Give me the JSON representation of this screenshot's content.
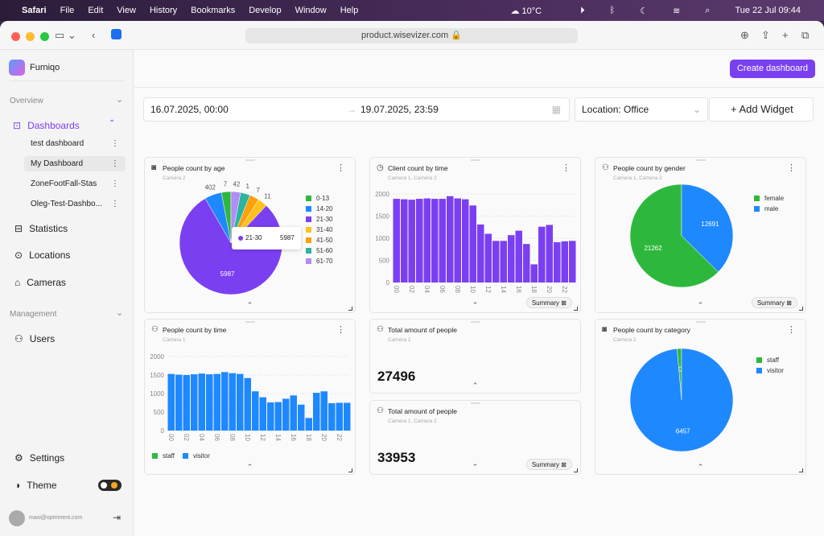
{
  "menubar": {
    "app": "Safari",
    "items": [
      "File",
      "Edit",
      "View",
      "History",
      "Bookmarks",
      "Develop",
      "Window",
      "Help"
    ],
    "weather": "10°C",
    "datetime": "Tue 22 Jul  09:44"
  },
  "browser": {
    "url": "product.wisevizer.com"
  },
  "sidebar": {
    "brand": "Furniqo",
    "overview": "Overview",
    "dashboards": "Dashboards",
    "dashboard_items": [
      "test dashboard",
      "My Dashboard",
      "ZoneFootFall-Stas",
      "Oleg-Test-Dashbo..."
    ],
    "statistics": "Statistics",
    "locations": "Locations",
    "cameras": "Cameras",
    "management": "Management",
    "users": "Users",
    "settings": "Settings",
    "theme": "Theme",
    "email": "maxi@optriment.com"
  },
  "header": {
    "create_label": "Create dashboard"
  },
  "filters": {
    "start": "16.07.2025, 00:00",
    "end": "19.07.2025, 23:59",
    "location": "Location: Office",
    "add_widget": "Add Widget"
  },
  "common": {
    "summary": "Summary"
  },
  "widgets": {
    "age": {
      "title": "People count by age",
      "sub": "Camera 2",
      "tooltip_label": "21-30",
      "tooltip_value": "5987"
    },
    "client": {
      "title": "Client count by time",
      "sub": "Camera 1, Camera 2"
    },
    "gender": {
      "title": "People count by gender",
      "sub": "Camera 1, Camera 2"
    },
    "ptime": {
      "title": "People count by time",
      "sub": "Camera 1"
    },
    "total1": {
      "title": "Total amount of people",
      "sub": "Camera 1",
      "value": "27496"
    },
    "total2": {
      "title": "Total amount of people",
      "sub": "Camera 1, Camera 2",
      "value": "33953"
    },
    "category": {
      "title": "People count by category",
      "sub": "Camera 2"
    }
  },
  "chart_data": [
    {
      "id": "age",
      "type": "pie",
      "labels": [
        "0-13",
        "14-20",
        "21-30",
        "31-40",
        "41-50",
        "51-60",
        "61-70"
      ],
      "values": [
        7,
        402,
        5987,
        11,
        7,
        1,
        42
      ],
      "colors": [
        "#2db83d",
        "#1e88ff",
        "#7b3ff2",
        "#ffc21a",
        "#ff9f0a",
        "#2bb5a0",
        "#b38cf5"
      ]
    },
    {
      "id": "client",
      "type": "bar",
      "categories": [
        "00",
        "01",
        "02",
        "03",
        "04",
        "05",
        "06",
        "07",
        "08",
        "09",
        "10",
        "11",
        "12",
        "13",
        "14",
        "15",
        "16",
        "17",
        "18",
        "19",
        "20",
        "21",
        "22",
        "23"
      ],
      "values": [
        1890,
        1880,
        1870,
        1890,
        1900,
        1890,
        1890,
        1950,
        1900,
        1880,
        1740,
        1310,
        1100,
        940,
        940,
        1070,
        1170,
        870,
        410,
        1260,
        1300,
        910,
        930,
        940
      ],
      "ylim": [
        0,
        2000
      ],
      "yticks": [
        0,
        500,
        1000,
        1500,
        2000
      ],
      "color": "#7b3ff2"
    },
    {
      "id": "gender",
      "type": "pie",
      "labels": [
        "female",
        "male"
      ],
      "values": [
        21262,
        12691
      ],
      "colors": [
        "#2db83d",
        "#1e88ff"
      ]
    },
    {
      "id": "ptime",
      "type": "bar",
      "categories": [
        "00",
        "01",
        "02",
        "03",
        "04",
        "05",
        "06",
        "07",
        "08",
        "09",
        "10",
        "11",
        "12",
        "13",
        "14",
        "15",
        "16",
        "17",
        "18",
        "19",
        "20",
        "21",
        "22",
        "23"
      ],
      "series": [
        {
          "name": "staff",
          "values": [
            0,
            0,
            0,
            0,
            0,
            0,
            0,
            0,
            0,
            0,
            0,
            0,
            0,
            0,
            0,
            0,
            0,
            0,
            0,
            0,
            0,
            0,
            0,
            0
          ],
          "color": "#2db83d"
        },
        {
          "name": "visitor",
          "values": [
            1530,
            1510,
            1500,
            1520,
            1540,
            1520,
            1530,
            1580,
            1550,
            1530,
            1420,
            1060,
            900,
            760,
            770,
            860,
            950,
            700,
            340,
            1020,
            1060,
            740,
            750,
            750
          ],
          "color": "#1e88ff"
        }
      ],
      "ylim": [
        0,
        2000
      ],
      "yticks": [
        0,
        500,
        1000,
        1500,
        2000
      ]
    },
    {
      "id": "category",
      "type": "pie",
      "labels": [
        "staff",
        "visitor"
      ],
      "values": [
        0,
        6457
      ],
      "colors": [
        "#2db83d",
        "#1e88ff"
      ]
    }
  ]
}
